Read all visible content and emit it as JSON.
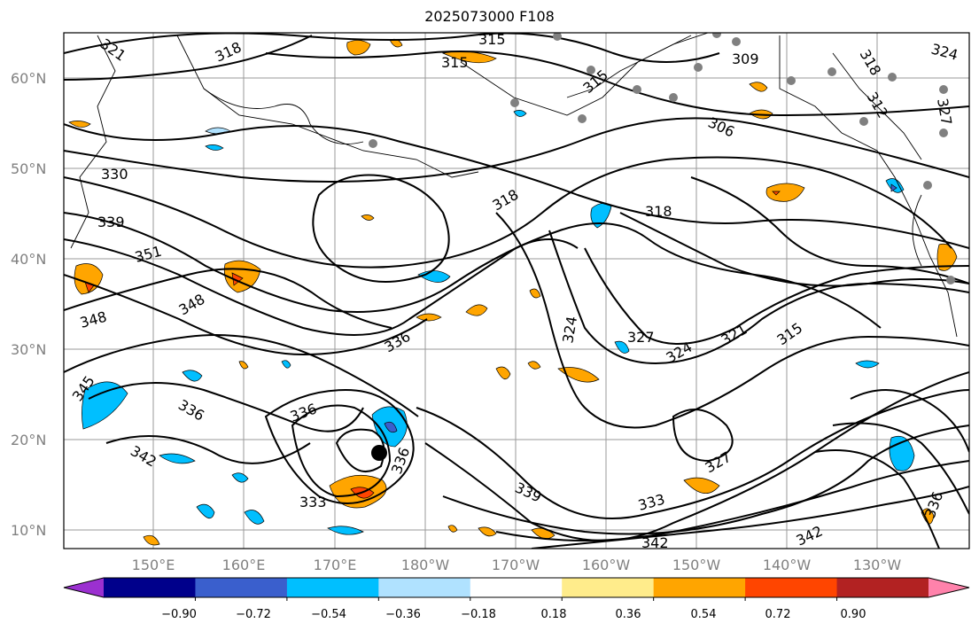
{
  "title": "2025073000 F108",
  "map": {
    "latitude_labels": [
      "60°N",
      "50°N",
      "40°N",
      "30°N",
      "20°N",
      "10°N"
    ],
    "longitude_labels": [
      "150°E",
      "160°E",
      "170°E",
      "180°W",
      "170°W",
      "160°W",
      "150°W",
      "140°W",
      "130°W"
    ],
    "contour_labels": [
      "321",
      "318",
      "315",
      "315",
      "309",
      "318",
      "324",
      "315",
      "306",
      "312",
      "327",
      "330",
      "339",
      "351",
      "348",
      "348",
      "318",
      "318",
      "324",
      "327",
      "324",
      "321",
      "315",
      "336",
      "345",
      "336",
      "342",
      "336",
      "333",
      "336",
      "339",
      "327",
      "333",
      "336",
      "342",
      "342"
    ],
    "storm_marker": "tropical-cyclone-center",
    "station_markers": "grey-dots"
  },
  "colorbar": {
    "tick_labels": [
      "−0.90",
      "−0.72",
      "−0.54",
      "−0.36",
      "−0.18",
      "0.18",
      "0.36",
      "0.54",
      "0.72",
      "0.90"
    ],
    "colors": [
      "#9b30d0",
      "#00008b",
      "#3a5fcd",
      "#00bfff",
      "#b0e2ff",
      "#ffffff",
      "#ffec8b",
      "#ffa500",
      "#ff4500",
      "#b22222",
      "#ff82ab"
    ]
  }
}
